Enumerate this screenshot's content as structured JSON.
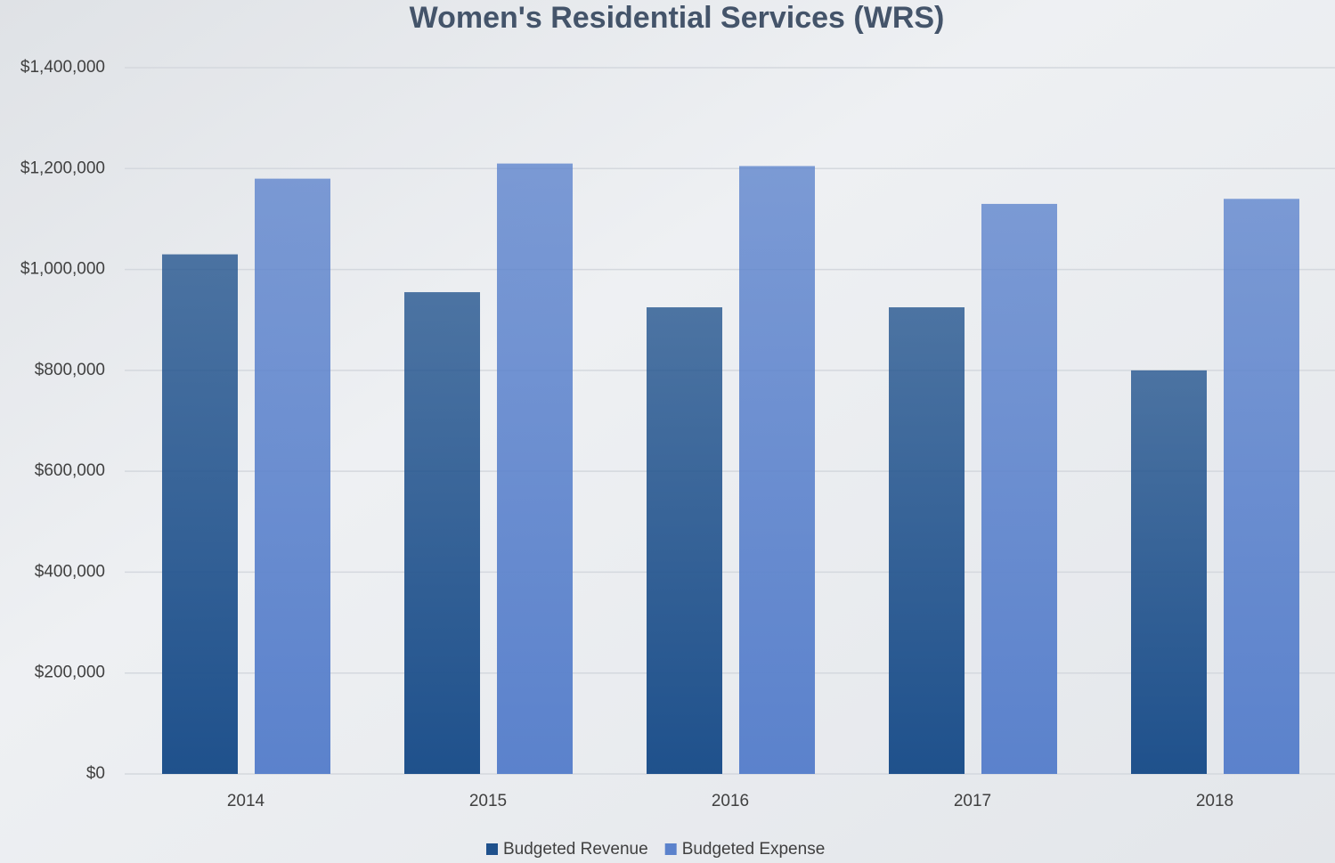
{
  "chart_data": {
    "type": "bar",
    "title": "Women's Residential Services (WRS)",
    "categories": [
      "2014",
      "2015",
      "2016",
      "2017",
      "2018"
    ],
    "series": [
      {
        "name": "Budgeted Revenue",
        "color": "#1f518c",
        "values": [
          1030000,
          955000,
          925000,
          925000,
          800000
        ]
      },
      {
        "name": "Budgeted Expense",
        "color": "#5b82cc",
        "values": [
          1180000,
          1210000,
          1205000,
          1130000,
          1140000
        ]
      }
    ],
    "ylim": [
      0,
      1400000
    ],
    "yticks": [
      {
        "value": 0,
        "label": "$0"
      },
      {
        "value": 200000,
        "label": "$200,000"
      },
      {
        "value": 400000,
        "label": "$400,000"
      },
      {
        "value": 600000,
        "label": "$600,000"
      },
      {
        "value": 800000,
        "label": "$800,000"
      },
      {
        "value": 1000000,
        "label": "$1,000,000"
      },
      {
        "value": 1200000,
        "label": "$1,200,000"
      },
      {
        "value": 1400000,
        "label": "$1,400,000"
      }
    ],
    "grid": true,
    "legend": "bottom"
  }
}
